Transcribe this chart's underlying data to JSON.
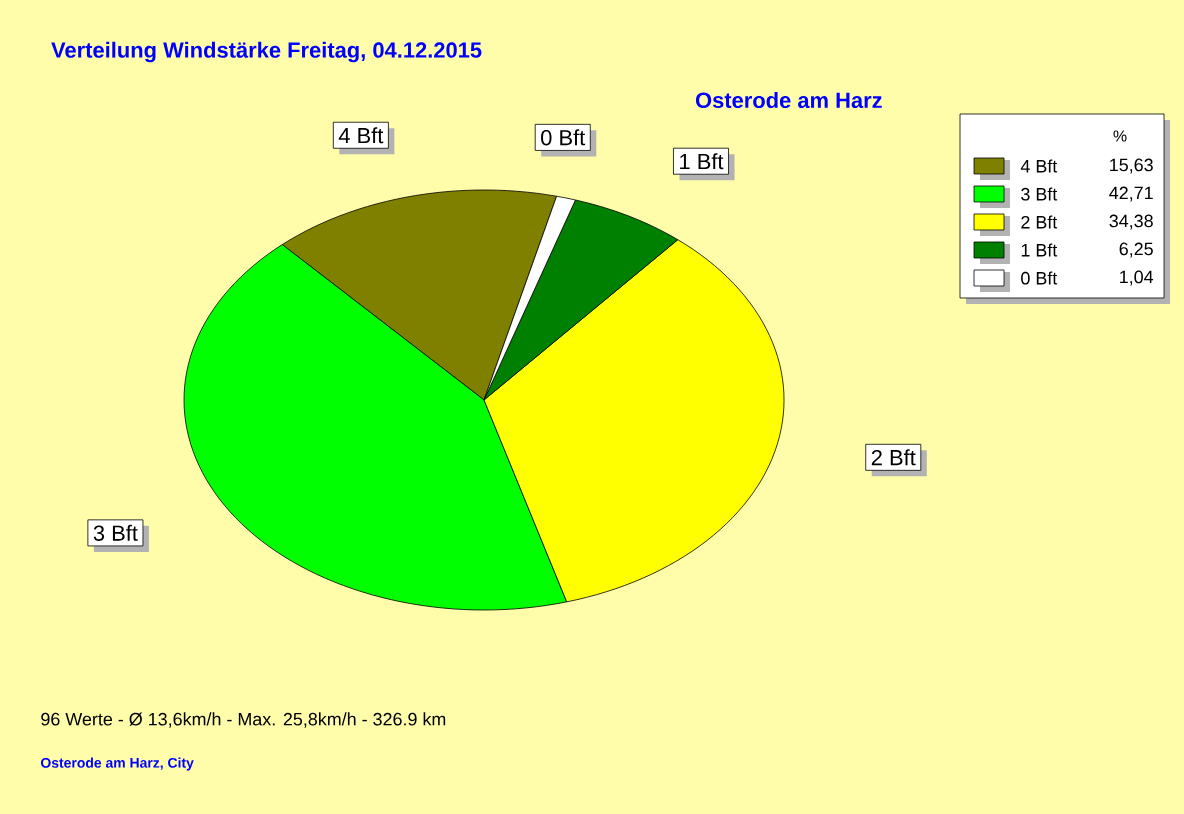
{
  "chart_data": {
    "type": "pie",
    "title": "Verteilung Windstärke  Freitag, 04.12.2015",
    "subtitle": "Osterode am Harz",
    "categories": [
      "4 Bft",
      "3 Bft",
      "2 Bft",
      "1 Bft",
      "0 Bft"
    ],
    "values": [
      15.63,
      42.71,
      34.38,
      6.25,
      1.04
    ],
    "colors": [
      "#808000",
      "#00ff00",
      "#ffff00",
      "#008000",
      "#ffffff"
    ],
    "value_labels": [
      "15,63",
      "42,71",
      "34,38",
      "6,25",
      "1,04"
    ],
    "legend": "top right",
    "legend_title": "%",
    "annotations": [
      "96 Werte   -   Ø 13,6km/h  -  Max. 25,8km/h   -   326.9 km",
      "Osterode am Harz, City"
    ]
  }
}
